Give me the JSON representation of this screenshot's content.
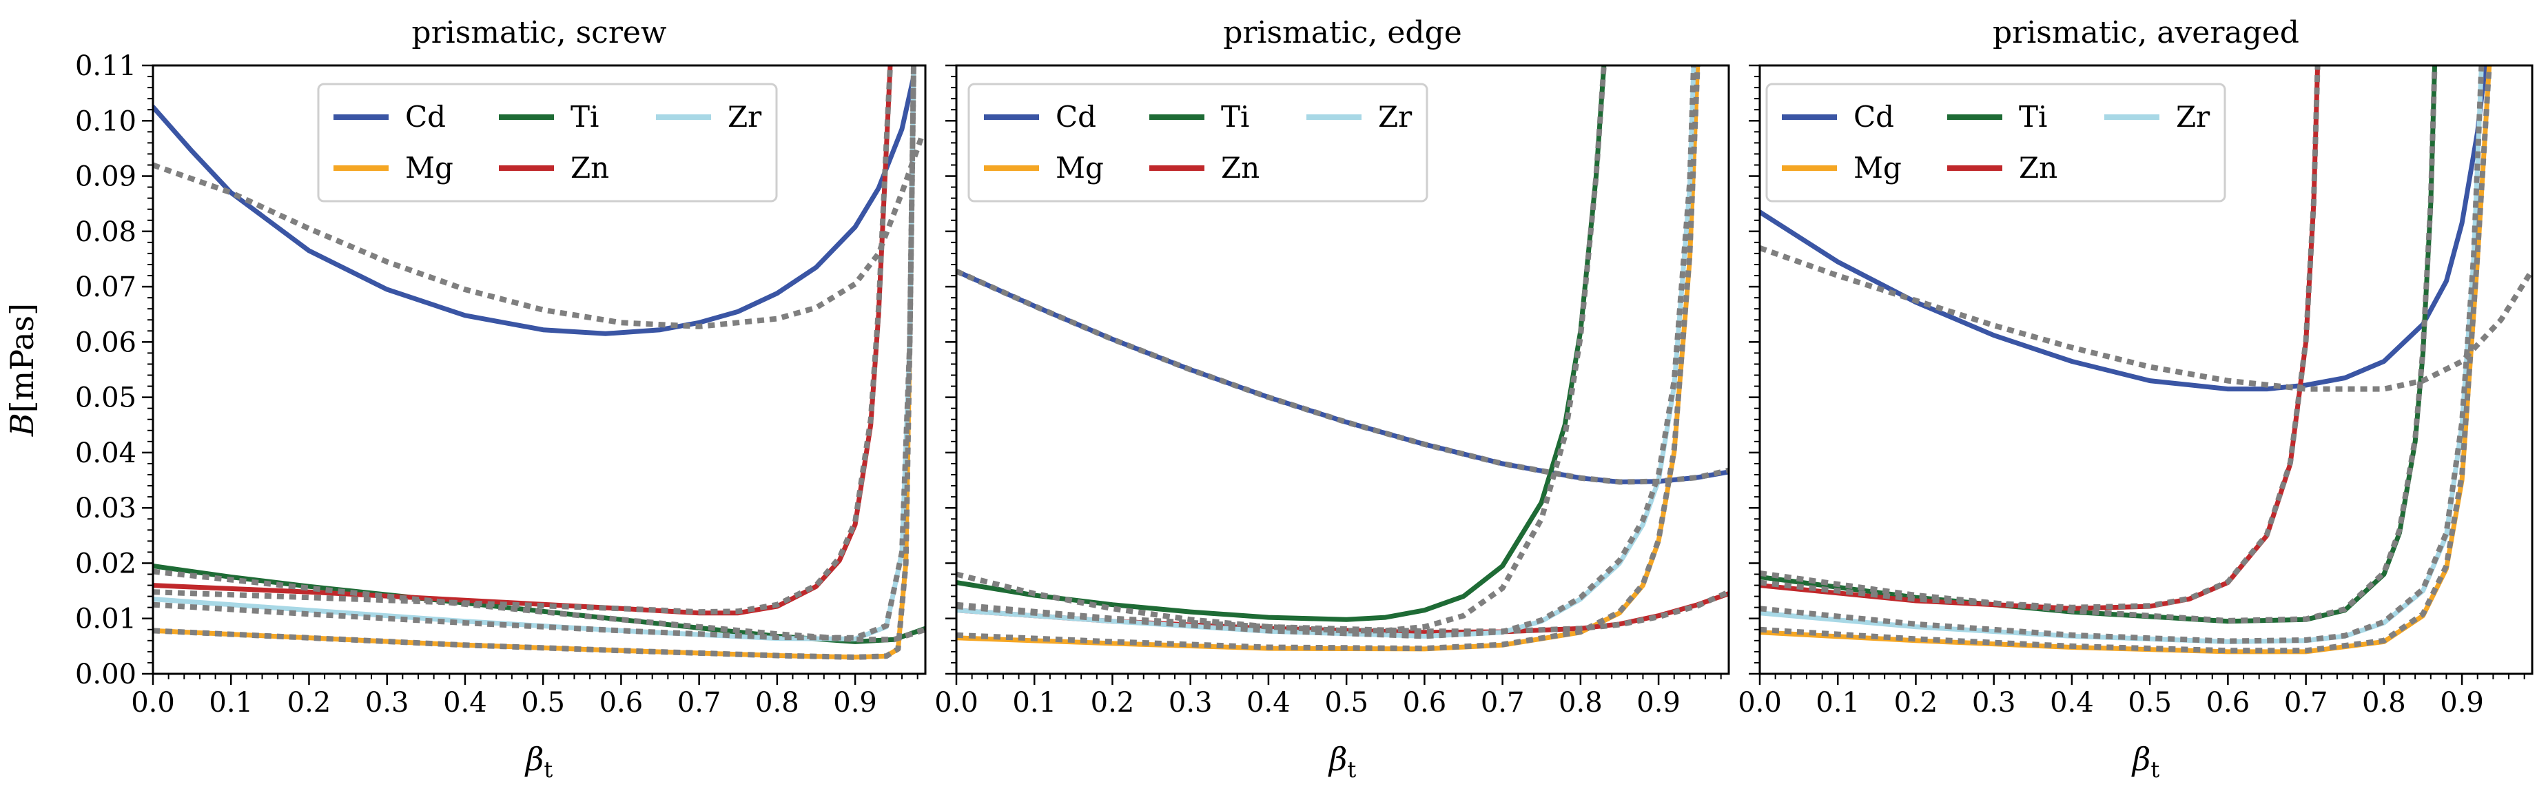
{
  "chart_data": [
    {
      "type": "line",
      "title": "prismatic, screw",
      "xlabel": "βt",
      "ylabel": "B[mPas]",
      "xlim": [
        0.0,
        0.99
      ],
      "ylim": [
        0.0,
        0.11
      ],
      "xticks": [
        "0.0",
        "0.1",
        "0.2",
        "0.3",
        "0.4",
        "0.5",
        "0.6",
        "0.7",
        "0.8",
        "0.9"
      ],
      "yticks": [
        "0.00",
        "0.01",
        "0.02",
        "0.03",
        "0.04",
        "0.05",
        "0.06",
        "0.07",
        "0.08",
        "0.09",
        "0.10",
        "0.11"
      ],
      "legend": [
        "Cd",
        "Mg",
        "Ti",
        "Zn",
        "Zr"
      ],
      "series": [
        {
          "name": "Cd",
          "color": "#3a55a4",
          "x": [
            0,
            0.05,
            0.1,
            0.2,
            0.3,
            0.4,
            0.5,
            0.58,
            0.65,
            0.7,
            0.75,
            0.8,
            0.85,
            0.9,
            0.93,
            0.96,
            0.975
          ],
          "y": [
            0.1025,
            0.0945,
            0.087,
            0.0765,
            0.0695,
            0.0648,
            0.0622,
            0.0615,
            0.0622,
            0.0635,
            0.0655,
            0.0688,
            0.0735,
            0.0808,
            0.0878,
            0.0985,
            0.108
          ]
        },
        {
          "name": "Cd fit",
          "color": "#7f7f7f",
          "dashed": true,
          "x": [
            0,
            0.1,
            0.2,
            0.3,
            0.4,
            0.5,
            0.6,
            0.7,
            0.8,
            0.85,
            0.9,
            0.93,
            0.96,
            0.985
          ],
          "y": [
            0.092,
            0.087,
            0.0805,
            0.0745,
            0.0695,
            0.0658,
            0.0635,
            0.0628,
            0.0642,
            0.0662,
            0.0705,
            0.076,
            0.087,
            0.097
          ]
        },
        {
          "name": "Mg",
          "color": "#f5a623",
          "x": [
            0,
            0.2,
            0.4,
            0.6,
            0.8,
            0.9,
            0.94,
            0.955,
            0.965,
            0.97,
            0.975
          ],
          "y": [
            0.0078,
            0.0065,
            0.0052,
            0.0042,
            0.0033,
            0.003,
            0.0032,
            0.0045,
            0.02,
            0.06,
            0.11
          ]
        },
        {
          "name": "Mg fit",
          "color": "#7f7f7f",
          "dashed": true,
          "x": [
            0,
            0.2,
            0.4,
            0.6,
            0.8,
            0.9,
            0.94,
            0.955,
            0.965,
            0.97,
            0.975
          ],
          "y": [
            0.0078,
            0.0065,
            0.0052,
            0.0042,
            0.0033,
            0.003,
            0.0032,
            0.0045,
            0.02,
            0.06,
            0.11
          ]
        },
        {
          "name": "Ti",
          "color": "#1e6b35",
          "x": [
            0,
            0.1,
            0.2,
            0.3,
            0.4,
            0.5,
            0.6,
            0.7,
            0.8,
            0.9,
            0.95,
            0.99
          ],
          "y": [
            0.0195,
            0.0175,
            0.0158,
            0.0143,
            0.0128,
            0.0113,
            0.0098,
            0.0083,
            0.0068,
            0.0058,
            0.0062,
            0.0082
          ]
        },
        {
          "name": "Ti fit",
          "color": "#7f7f7f",
          "dashed": true,
          "x": [
            0,
            0.1,
            0.2,
            0.3,
            0.4,
            0.5,
            0.6,
            0.7,
            0.8,
            0.9,
            0.95,
            0.99
          ],
          "y": [
            0.0185,
            0.017,
            0.0155,
            0.014,
            0.0126,
            0.0112,
            0.0098,
            0.0085,
            0.0072,
            0.0062,
            0.0062,
            0.008
          ]
        },
        {
          "name": "Zn",
          "color": "#c0282b",
          "x": [
            0,
            0.2,
            0.4,
            0.6,
            0.7,
            0.75,
            0.8,
            0.85,
            0.88,
            0.9,
            0.92,
            0.93,
            0.94,
            0.945
          ],
          "y": [
            0.016,
            0.0148,
            0.0133,
            0.0118,
            0.011,
            0.011,
            0.0122,
            0.0158,
            0.0205,
            0.027,
            0.045,
            0.065,
            0.095,
            0.11
          ]
        },
        {
          "name": "Zn fit",
          "color": "#7f7f7f",
          "dashed": true,
          "x": [
            0,
            0.2,
            0.4,
            0.6,
            0.7,
            0.75,
            0.8,
            0.85,
            0.88,
            0.9,
            0.92,
            0.93,
            0.94,
            0.945
          ],
          "y": [
            0.0148,
            0.0138,
            0.0128,
            0.0118,
            0.0112,
            0.0113,
            0.0125,
            0.016,
            0.021,
            0.0275,
            0.046,
            0.066,
            0.096,
            0.11
          ]
        },
        {
          "name": "Zr",
          "color": "#a8d8e6",
          "x": [
            0,
            0.2,
            0.4,
            0.6,
            0.8,
            0.9,
            0.94,
            0.96,
            0.97,
            0.975
          ],
          "y": [
            0.0135,
            0.0115,
            0.0095,
            0.0078,
            0.0064,
            0.0063,
            0.0085,
            0.022,
            0.06,
            0.11
          ]
        },
        {
          "name": "Zr fit",
          "color": "#7f7f7f",
          "dashed": true,
          "x": [
            0,
            0.2,
            0.4,
            0.6,
            0.8,
            0.9,
            0.94,
            0.96,
            0.97,
            0.975
          ],
          "y": [
            0.0125,
            0.0108,
            0.0092,
            0.0078,
            0.0066,
            0.0065,
            0.0087,
            0.022,
            0.06,
            0.11
          ]
        }
      ]
    },
    {
      "type": "line",
      "title": "prismatic, edge",
      "xlabel": "βt",
      "ylabel": "",
      "xlim": [
        0.0,
        0.99
      ],
      "ylim": [
        0.0,
        0.11
      ],
      "xticks": [
        "0.0",
        "0.1",
        "0.2",
        "0.3",
        "0.4",
        "0.5",
        "0.6",
        "0.7",
        "0.8",
        "0.9"
      ],
      "legend": [
        "Cd",
        "Mg",
        "Ti",
        "Zn",
        "Zr"
      ],
      "series": [
        {
          "name": "Cd",
          "color": "#3a55a4",
          "x": [
            0,
            0.1,
            0.2,
            0.3,
            0.4,
            0.5,
            0.6,
            0.7,
            0.8,
            0.85,
            0.9,
            0.95,
            0.99
          ],
          "y": [
            0.0728,
            0.0665,
            0.0605,
            0.055,
            0.05,
            0.0455,
            0.0415,
            0.038,
            0.0354,
            0.0347,
            0.0348,
            0.0355,
            0.0365
          ]
        },
        {
          "name": "Cd fit",
          "color": "#7f7f7f",
          "dashed": true,
          "x": [
            0,
            0.1,
            0.2,
            0.3,
            0.4,
            0.5,
            0.6,
            0.7,
            0.8,
            0.85,
            0.9,
            0.95,
            0.99
          ],
          "y": [
            0.0728,
            0.0665,
            0.0605,
            0.055,
            0.05,
            0.0455,
            0.0415,
            0.038,
            0.0354,
            0.0347,
            0.0348,
            0.0355,
            0.0368
          ]
        },
        {
          "name": "Mg",
          "color": "#f5a623",
          "x": [
            0,
            0.2,
            0.4,
            0.6,
            0.7,
            0.8,
            0.85,
            0.88,
            0.9,
            0.92,
            0.94,
            0.95
          ],
          "y": [
            0.0065,
            0.0055,
            0.0046,
            0.0045,
            0.0052,
            0.0075,
            0.011,
            0.016,
            0.024,
            0.04,
            0.075,
            0.11
          ]
        },
        {
          "name": "Mg fit",
          "color": "#7f7f7f",
          "dashed": true,
          "x": [
            0,
            0.2,
            0.4,
            0.6,
            0.7,
            0.8,
            0.85,
            0.88,
            0.9,
            0.92,
            0.94,
            0.95
          ],
          "y": [
            0.007,
            0.0058,
            0.0048,
            0.0046,
            0.0053,
            0.0076,
            0.0112,
            0.0162,
            0.0242,
            0.0405,
            0.076,
            0.11
          ]
        },
        {
          "name": "Ti",
          "color": "#1e6b35",
          "x": [
            0,
            0.1,
            0.2,
            0.3,
            0.4,
            0.5,
            0.55,
            0.6,
            0.65,
            0.7,
            0.75,
            0.78,
            0.8,
            0.82,
            0.83
          ],
          "y": [
            0.0165,
            0.0142,
            0.0125,
            0.0112,
            0.0102,
            0.0098,
            0.0102,
            0.0115,
            0.014,
            0.0195,
            0.031,
            0.045,
            0.062,
            0.09,
            0.11
          ]
        },
        {
          "name": "Ti fit",
          "color": "#7f7f7f",
          "dashed": true,
          "x": [
            0,
            0.1,
            0.2,
            0.3,
            0.4,
            0.5,
            0.55,
            0.6,
            0.65,
            0.7,
            0.75,
            0.78,
            0.8,
            0.82,
            0.83
          ],
          "y": [
            0.018,
            0.0145,
            0.0118,
            0.0098,
            0.0085,
            0.0078,
            0.0078,
            0.0085,
            0.0105,
            0.0155,
            0.028,
            0.043,
            0.061,
            0.09,
            0.11
          ]
        },
        {
          "name": "Zn",
          "color": "#c0282b",
          "x": [
            0,
            0.2,
            0.4,
            0.6,
            0.7,
            0.8,
            0.85,
            0.9,
            0.95,
            0.99
          ],
          "y": [
            0.0115,
            0.0095,
            0.0082,
            0.0075,
            0.0076,
            0.0082,
            0.009,
            0.0105,
            0.0125,
            0.0145
          ]
        },
        {
          "name": "Zn fit",
          "color": "#7f7f7f",
          "dashed": true,
          "x": [
            0,
            0.2,
            0.4,
            0.6,
            0.7,
            0.8,
            0.85,
            0.9,
            0.95,
            0.99
          ],
          "y": [
            0.0125,
            0.01,
            0.0085,
            0.0077,
            0.0077,
            0.0082,
            0.0089,
            0.0103,
            0.0123,
            0.0148
          ]
        },
        {
          "name": "Zr",
          "color": "#a8d8e6",
          "x": [
            0,
            0.2,
            0.4,
            0.6,
            0.7,
            0.75,
            0.8,
            0.85,
            0.88,
            0.9,
            0.92,
            0.94,
            0.945
          ],
          "y": [
            0.0115,
            0.0095,
            0.0077,
            0.0068,
            0.0075,
            0.0095,
            0.0135,
            0.02,
            0.027,
            0.035,
            0.052,
            0.088,
            0.11
          ]
        },
        {
          "name": "Zr fit",
          "color": "#7f7f7f",
          "dashed": true,
          "x": [
            0,
            0.2,
            0.4,
            0.6,
            0.7,
            0.75,
            0.8,
            0.85,
            0.88,
            0.9,
            0.92,
            0.94,
            0.945
          ],
          "y": [
            0.0122,
            0.0098,
            0.0078,
            0.0068,
            0.0076,
            0.0097,
            0.0138,
            0.0205,
            0.0278,
            0.036,
            0.053,
            0.089,
            0.11
          ]
        }
      ]
    },
    {
      "type": "line",
      "title": "prismatic, averaged",
      "xlabel": "βt",
      "ylabel": "",
      "xlim": [
        0.0,
        0.99
      ],
      "ylim": [
        0.0,
        0.11
      ],
      "xticks": [
        "0.0",
        "0.1",
        "0.2",
        "0.3",
        "0.4",
        "0.5",
        "0.6",
        "0.7",
        "0.8",
        "0.9"
      ],
      "legend": [
        "Cd",
        "Mg",
        "Ti",
        "Zn",
        "Zr"
      ],
      "series": [
        {
          "name": "Cd",
          "color": "#3a55a4",
          "x": [
            0,
            0.1,
            0.2,
            0.3,
            0.4,
            0.5,
            0.6,
            0.65,
            0.7,
            0.75,
            0.8,
            0.85,
            0.88,
            0.9,
            0.92,
            0.93
          ],
          "y": [
            0.0835,
            0.0745,
            0.0672,
            0.0612,
            0.0565,
            0.053,
            0.0515,
            0.0515,
            0.0522,
            0.0535,
            0.0565,
            0.0632,
            0.071,
            0.0815,
            0.098,
            0.11
          ]
        },
        {
          "name": "Cd fit",
          "color": "#7f7f7f",
          "dashed": true,
          "x": [
            0,
            0.1,
            0.2,
            0.3,
            0.4,
            0.5,
            0.6,
            0.7,
            0.8,
            0.85,
            0.9,
            0.95,
            0.99
          ],
          "y": [
            0.077,
            0.072,
            0.0675,
            0.063,
            0.059,
            0.0555,
            0.053,
            0.0515,
            0.0515,
            0.053,
            0.0565,
            0.064,
            0.073
          ]
        },
        {
          "name": "Mg",
          "color": "#f5a623",
          "x": [
            0,
            0.2,
            0.4,
            0.6,
            0.7,
            0.8,
            0.85,
            0.88,
            0.9,
            0.92,
            0.935
          ],
          "y": [
            0.0075,
            0.006,
            0.0048,
            0.004,
            0.004,
            0.0058,
            0.0105,
            0.019,
            0.035,
            0.075,
            0.11
          ]
        },
        {
          "name": "Mg fit",
          "color": "#7f7f7f",
          "dashed": true,
          "x": [
            0,
            0.2,
            0.4,
            0.6,
            0.7,
            0.8,
            0.85,
            0.88,
            0.9,
            0.92,
            0.935
          ],
          "y": [
            0.008,
            0.0063,
            0.005,
            0.0042,
            0.0042,
            0.006,
            0.0108,
            0.0195,
            0.036,
            0.076,
            0.11
          ]
        },
        {
          "name": "Ti",
          "color": "#1e6b35",
          "x": [
            0,
            0.2,
            0.4,
            0.6,
            0.7,
            0.75,
            0.8,
            0.82,
            0.84,
            0.85,
            0.86,
            0.865
          ],
          "y": [
            0.0175,
            0.0138,
            0.0112,
            0.0095,
            0.0098,
            0.0115,
            0.018,
            0.0255,
            0.042,
            0.058,
            0.085,
            0.11
          ]
        },
        {
          "name": "Ti fit",
          "color": "#7f7f7f",
          "dashed": true,
          "x": [
            0,
            0.2,
            0.4,
            0.6,
            0.7,
            0.75,
            0.8,
            0.82,
            0.84,
            0.85,
            0.86,
            0.865
          ],
          "y": [
            0.0182,
            0.0142,
            0.0114,
            0.0096,
            0.0099,
            0.0117,
            0.0183,
            0.026,
            0.0425,
            0.0585,
            0.0855,
            0.11
          ]
        },
        {
          "name": "Zn",
          "color": "#c0282b",
          "x": [
            0,
            0.2,
            0.4,
            0.5,
            0.55,
            0.6,
            0.65,
            0.68,
            0.7,
            0.71,
            0.715
          ],
          "y": [
            0.016,
            0.0132,
            0.0118,
            0.0122,
            0.0135,
            0.0165,
            0.025,
            0.038,
            0.06,
            0.085,
            0.11
          ]
        },
        {
          "name": "Zn fit",
          "color": "#7f7f7f",
          "dashed": true,
          "x": [
            0,
            0.2,
            0.4,
            0.5,
            0.55,
            0.6,
            0.65,
            0.68,
            0.7,
            0.71,
            0.715
          ],
          "y": [
            0.0165,
            0.0135,
            0.012,
            0.0123,
            0.0136,
            0.0166,
            0.0252,
            0.0382,
            0.0602,
            0.0852,
            0.11
          ]
        },
        {
          "name": "Zr",
          "color": "#a8d8e6",
          "x": [
            0,
            0.2,
            0.4,
            0.6,
            0.7,
            0.75,
            0.8,
            0.85,
            0.88,
            0.9,
            0.915,
            0.925
          ],
          "y": [
            0.011,
            0.0085,
            0.0068,
            0.0058,
            0.006,
            0.0068,
            0.0092,
            0.015,
            0.025,
            0.045,
            0.075,
            0.11
          ]
        },
        {
          "name": "Zr fit",
          "color": "#7f7f7f",
          "dashed": true,
          "x": [
            0,
            0.2,
            0.4,
            0.6,
            0.7,
            0.75,
            0.8,
            0.85,
            0.88,
            0.9,
            0.915,
            0.925
          ],
          "y": [
            0.0118,
            0.009,
            0.007,
            0.0059,
            0.0061,
            0.0069,
            0.0094,
            0.0153,
            0.0255,
            0.0455,
            0.0755,
            0.11
          ]
        }
      ]
    }
  ]
}
